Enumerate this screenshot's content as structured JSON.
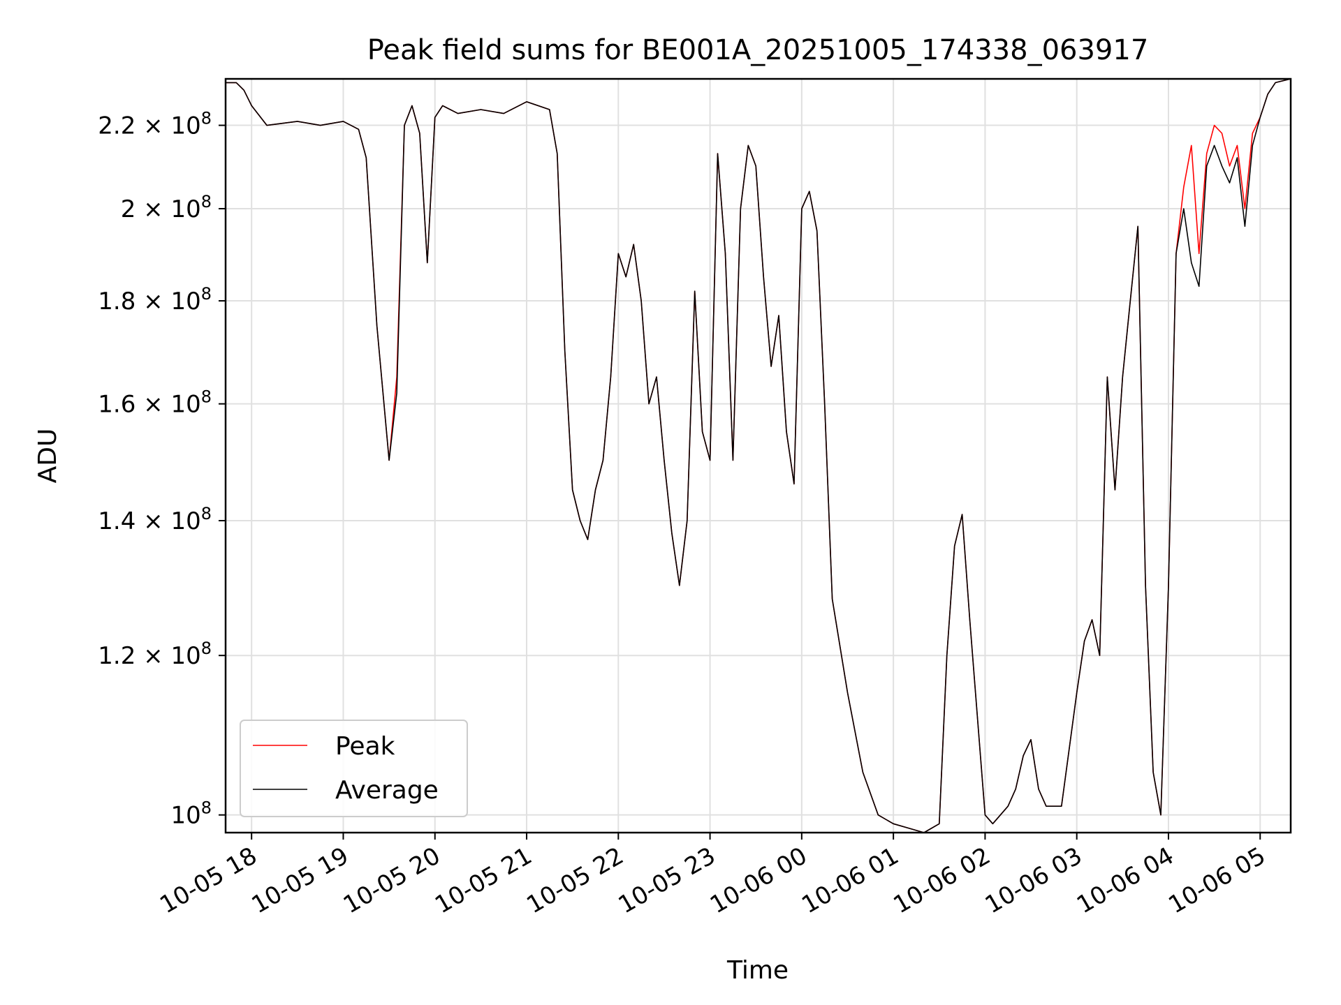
{
  "chart_data": {
    "type": "line",
    "title": "Peak field sums for BE001A_20251005_174338_063917",
    "xlabel": "Time",
    "ylabel": "ADU",
    "y_scale": "log",
    "xlim": [
      "2025-10-05 17:43",
      "2025-10-06 05:20"
    ],
    "ylim": [
      98000000,
      232000000
    ],
    "x_ticks": [
      "10-05 18",
      "10-05 19",
      "10-05 20",
      "10-05 21",
      "10-05 22",
      "10-05 23",
      "10-06 00",
      "10-06 01",
      "10-06 02",
      "10-06 03",
      "10-06 04",
      "10-06 05"
    ],
    "x_tick_times": [
      "2025-10-05 18:00",
      "2025-10-05 19:00",
      "2025-10-05 20:00",
      "2025-10-05 21:00",
      "2025-10-05 22:00",
      "2025-10-05 23:00",
      "2025-10-06 00:00",
      "2025-10-06 01:00",
      "2025-10-06 02:00",
      "2025-10-06 03:00",
      "2025-10-06 04:00",
      "2025-10-06 05:00"
    ],
    "y_ticks": [
      {
        "value": 100000000,
        "mantissa": "",
        "exp": "8",
        "base": "10"
      },
      {
        "value": 120000000,
        "mantissa": "1.2",
        "exp": "8",
        "base": "10"
      },
      {
        "value": 140000000,
        "mantissa": "1.4",
        "exp": "8",
        "base": "10"
      },
      {
        "value": 160000000,
        "mantissa": "1.6",
        "exp": "8",
        "base": "10"
      },
      {
        "value": 180000000,
        "mantissa": "1.8",
        "exp": "8",
        "base": "10"
      },
      {
        "value": 200000000,
        "mantissa": "2",
        "exp": "8",
        "base": "10"
      },
      {
        "value": 220000000,
        "mantissa": "2.2",
        "exp": "8",
        "base": "10"
      }
    ],
    "grid": true,
    "legend_position": "lower-left",
    "series": [
      {
        "name": "Peak",
        "color": "#ff0000",
        "points": [
          [
            "2025-10-05 17:43",
            231
          ],
          [
            "2025-10-05 17:50",
            231
          ],
          [
            "2025-10-05 17:55",
            229
          ],
          [
            "2025-10-05 18:00",
            225
          ],
          [
            "2025-10-05 18:10",
            220
          ],
          [
            "2025-10-05 18:30",
            221
          ],
          [
            "2025-10-05 18:45",
            220
          ],
          [
            "2025-10-05 19:00",
            221
          ],
          [
            "2025-10-05 19:10",
            219
          ],
          [
            "2025-10-05 19:15",
            212
          ],
          [
            "2025-10-05 19:22",
            175
          ],
          [
            "2025-10-05 19:30",
            150
          ],
          [
            "2025-10-05 19:35",
            165
          ],
          [
            "2025-10-05 19:40",
            220
          ],
          [
            "2025-10-05 19:45",
            225
          ],
          [
            "2025-10-05 19:50",
            218
          ],
          [
            "2025-10-05 19:55",
            188
          ],
          [
            "2025-10-05 20:00",
            222
          ],
          [
            "2025-10-05 20:05",
            225
          ],
          [
            "2025-10-05 20:15",
            223
          ],
          [
            "2025-10-05 20:30",
            224
          ],
          [
            "2025-10-05 20:45",
            223
          ],
          [
            "2025-10-05 21:00",
            226
          ],
          [
            "2025-10-05 21:15",
            224
          ],
          [
            "2025-10-05 21:20",
            213
          ],
          [
            "2025-10-05 21:25",
            170
          ],
          [
            "2025-10-05 21:30",
            145
          ],
          [
            "2025-10-05 21:35",
            140
          ],
          [
            "2025-10-05 21:40",
            137
          ],
          [
            "2025-10-05 21:45",
            145
          ],
          [
            "2025-10-05 21:50",
            150
          ],
          [
            "2025-10-05 21:55",
            165
          ],
          [
            "2025-10-05 22:00",
            190
          ],
          [
            "2025-10-05 22:05",
            185
          ],
          [
            "2025-10-05 22:10",
            192
          ],
          [
            "2025-10-05 22:15",
            180
          ],
          [
            "2025-10-05 22:20",
            160
          ],
          [
            "2025-10-05 22:25",
            165
          ],
          [
            "2025-10-05 22:30",
            150
          ],
          [
            "2025-10-05 22:35",
            138
          ],
          [
            "2025-10-05 22:40",
            130
          ],
          [
            "2025-10-05 22:45",
            140
          ],
          [
            "2025-10-05 22:50",
            182
          ],
          [
            "2025-10-05 22:55",
            155
          ],
          [
            "2025-10-05 23:00",
            150
          ],
          [
            "2025-10-05 23:05",
            213
          ],
          [
            "2025-10-05 23:10",
            190
          ],
          [
            "2025-10-05 23:15",
            150
          ],
          [
            "2025-10-05 23:20",
            200
          ],
          [
            "2025-10-05 23:25",
            215
          ],
          [
            "2025-10-05 23:30",
            210
          ],
          [
            "2025-10-05 23:35",
            185
          ],
          [
            "2025-10-05 23:40",
            167
          ],
          [
            "2025-10-05 23:45",
            177
          ],
          [
            "2025-10-05 23:50",
            155
          ],
          [
            "2025-10-05 23:55",
            146
          ],
          [
            "2025-10-06 00:00",
            200
          ],
          [
            "2025-10-06 00:05",
            204
          ],
          [
            "2025-10-06 00:10",
            195
          ],
          [
            "2025-10-06 00:15",
            160
          ],
          [
            "2025-10-06 00:20",
            128
          ],
          [
            "2025-10-06 00:30",
            115
          ],
          [
            "2025-10-06 00:40",
            105
          ],
          [
            "2025-10-06 00:50",
            100
          ],
          [
            "2025-10-06 01:00",
            99
          ],
          [
            "2025-10-06 01:10",
            98.5
          ],
          [
            "2025-10-06 01:20",
            98
          ],
          [
            "2025-10-06 01:30",
            99
          ],
          [
            "2025-10-06 01:35",
            120
          ],
          [
            "2025-10-06 01:40",
            136
          ],
          [
            "2025-10-06 01:45",
            141
          ],
          [
            "2025-10-06 01:50",
            125
          ],
          [
            "2025-10-06 02:00",
            100
          ],
          [
            "2025-10-06 02:05",
            99
          ],
          [
            "2025-10-06 02:15",
            101
          ],
          [
            "2025-10-06 02:20",
            103
          ],
          [
            "2025-10-06 02:25",
            107
          ],
          [
            "2025-10-06 02:30",
            109
          ],
          [
            "2025-10-06 02:35",
            103
          ],
          [
            "2025-10-06 02:40",
            101
          ],
          [
            "2025-10-06 02:50",
            101
          ],
          [
            "2025-10-06 03:00",
            115
          ],
          [
            "2025-10-06 03:05",
            122
          ],
          [
            "2025-10-06 03:10",
            125
          ],
          [
            "2025-10-06 03:15",
            120
          ],
          [
            "2025-10-06 03:20",
            165
          ],
          [
            "2025-10-06 03:25",
            145
          ],
          [
            "2025-10-06 03:30",
            165
          ],
          [
            "2025-10-06 03:35",
            180
          ],
          [
            "2025-10-06 03:40",
            196
          ],
          [
            "2025-10-06 03:45",
            130
          ],
          [
            "2025-10-06 03:50",
            105
          ],
          [
            "2025-10-06 03:55",
            100
          ],
          [
            "2025-10-06 04:00",
            130
          ],
          [
            "2025-10-06 04:05",
            190
          ],
          [
            "2025-10-06 04:10",
            205
          ],
          [
            "2025-10-06 04:15",
            215
          ],
          [
            "2025-10-06 04:20",
            190
          ],
          [
            "2025-10-06 04:25",
            213
          ],
          [
            "2025-10-06 04:30",
            220
          ],
          [
            "2025-10-06 04:35",
            218
          ],
          [
            "2025-10-06 04:40",
            210
          ],
          [
            "2025-10-06 04:45",
            215
          ],
          [
            "2025-10-06 04:50",
            200
          ],
          [
            "2025-10-06 04:55",
            218
          ],
          [
            "2025-10-06 05:00",
            222
          ],
          [
            "2025-10-06 05:05",
            228
          ],
          [
            "2025-10-06 05:10",
            231
          ],
          [
            "2025-10-06 05:20",
            232
          ]
        ]
      },
      {
        "name": "Average",
        "color": "#000000",
        "points": [
          [
            "2025-10-05 17:43",
            231
          ],
          [
            "2025-10-05 17:50",
            231
          ],
          [
            "2025-10-05 17:55",
            229
          ],
          [
            "2025-10-05 18:00",
            225
          ],
          [
            "2025-10-05 18:10",
            220
          ],
          [
            "2025-10-05 18:30",
            221
          ],
          [
            "2025-10-05 18:45",
            220
          ],
          [
            "2025-10-05 19:00",
            221
          ],
          [
            "2025-10-05 19:10",
            219
          ],
          [
            "2025-10-05 19:15",
            212
          ],
          [
            "2025-10-05 19:22",
            175
          ],
          [
            "2025-10-05 19:30",
            150
          ],
          [
            "2025-10-05 19:35",
            162
          ],
          [
            "2025-10-05 19:40",
            220
          ],
          [
            "2025-10-05 19:45",
            225
          ],
          [
            "2025-10-05 19:50",
            218
          ],
          [
            "2025-10-05 19:55",
            188
          ],
          [
            "2025-10-05 20:00",
            222
          ],
          [
            "2025-10-05 20:05",
            225
          ],
          [
            "2025-10-05 20:15",
            223
          ],
          [
            "2025-10-05 20:30",
            224
          ],
          [
            "2025-10-05 20:45",
            223
          ],
          [
            "2025-10-05 21:00",
            226
          ],
          [
            "2025-10-05 21:15",
            224
          ],
          [
            "2025-10-05 21:20",
            213
          ],
          [
            "2025-10-05 21:25",
            170
          ],
          [
            "2025-10-05 21:30",
            145
          ],
          [
            "2025-10-05 21:35",
            140
          ],
          [
            "2025-10-05 21:40",
            137
          ],
          [
            "2025-10-05 21:45",
            145
          ],
          [
            "2025-10-05 21:50",
            150
          ],
          [
            "2025-10-05 21:55",
            165
          ],
          [
            "2025-10-05 22:00",
            190
          ],
          [
            "2025-10-05 22:05",
            185
          ],
          [
            "2025-10-05 22:10",
            192
          ],
          [
            "2025-10-05 22:15",
            180
          ],
          [
            "2025-10-05 22:20",
            160
          ],
          [
            "2025-10-05 22:25",
            165
          ],
          [
            "2025-10-05 22:30",
            150
          ],
          [
            "2025-10-05 22:35",
            138
          ],
          [
            "2025-10-05 22:40",
            130
          ],
          [
            "2025-10-05 22:45",
            140
          ],
          [
            "2025-10-05 22:50",
            182
          ],
          [
            "2025-10-05 22:55",
            155
          ],
          [
            "2025-10-05 23:00",
            150
          ],
          [
            "2025-10-05 23:05",
            213
          ],
          [
            "2025-10-05 23:10",
            190
          ],
          [
            "2025-10-05 23:15",
            150
          ],
          [
            "2025-10-05 23:20",
            200
          ],
          [
            "2025-10-05 23:25",
            215
          ],
          [
            "2025-10-05 23:30",
            210
          ],
          [
            "2025-10-05 23:35",
            185
          ],
          [
            "2025-10-05 23:40",
            167
          ],
          [
            "2025-10-05 23:45",
            177
          ],
          [
            "2025-10-05 23:50",
            155
          ],
          [
            "2025-10-05 23:55",
            146
          ],
          [
            "2025-10-06 00:00",
            200
          ],
          [
            "2025-10-06 00:05",
            204
          ],
          [
            "2025-10-06 00:10",
            195
          ],
          [
            "2025-10-06 00:15",
            160
          ],
          [
            "2025-10-06 00:20",
            128
          ],
          [
            "2025-10-06 00:30",
            115
          ],
          [
            "2025-10-06 00:40",
            105
          ],
          [
            "2025-10-06 00:50",
            100
          ],
          [
            "2025-10-06 01:00",
            99
          ],
          [
            "2025-10-06 01:10",
            98.5
          ],
          [
            "2025-10-06 01:20",
            98
          ],
          [
            "2025-10-06 01:30",
            99
          ],
          [
            "2025-10-06 01:35",
            120
          ],
          [
            "2025-10-06 01:40",
            136
          ],
          [
            "2025-10-06 01:45",
            141
          ],
          [
            "2025-10-06 01:50",
            125
          ],
          [
            "2025-10-06 02:00",
            100
          ],
          [
            "2025-10-06 02:05",
            99
          ],
          [
            "2025-10-06 02:15",
            101
          ],
          [
            "2025-10-06 02:20",
            103
          ],
          [
            "2025-10-06 02:25",
            107
          ],
          [
            "2025-10-06 02:30",
            109
          ],
          [
            "2025-10-06 02:35",
            103
          ],
          [
            "2025-10-06 02:40",
            101
          ],
          [
            "2025-10-06 02:50",
            101
          ],
          [
            "2025-10-06 03:00",
            115
          ],
          [
            "2025-10-06 03:05",
            122
          ],
          [
            "2025-10-06 03:10",
            125
          ],
          [
            "2025-10-06 03:15",
            120
          ],
          [
            "2025-10-06 03:20",
            165
          ],
          [
            "2025-10-06 03:25",
            145
          ],
          [
            "2025-10-06 03:30",
            165
          ],
          [
            "2025-10-06 03:35",
            180
          ],
          [
            "2025-10-06 03:40",
            196
          ],
          [
            "2025-10-06 03:45",
            130
          ],
          [
            "2025-10-06 03:50",
            105
          ],
          [
            "2025-10-06 03:55",
            100
          ],
          [
            "2025-10-06 04:00",
            130
          ],
          [
            "2025-10-06 04:05",
            190
          ],
          [
            "2025-10-06 04:10",
            200
          ],
          [
            "2025-10-06 04:15",
            188
          ],
          [
            "2025-10-06 04:20",
            183
          ],
          [
            "2025-10-06 04:25",
            210
          ],
          [
            "2025-10-06 04:30",
            215
          ],
          [
            "2025-10-06 04:35",
            210
          ],
          [
            "2025-10-06 04:40",
            206
          ],
          [
            "2025-10-06 04:45",
            212
          ],
          [
            "2025-10-06 04:50",
            196
          ],
          [
            "2025-10-06 04:55",
            215
          ],
          [
            "2025-10-06 05:00",
            222
          ],
          [
            "2025-10-06 05:05",
            228
          ],
          [
            "2025-10-06 05:10",
            231
          ],
          [
            "2025-10-06 05:20",
            232
          ]
        ]
      }
    ]
  }
}
